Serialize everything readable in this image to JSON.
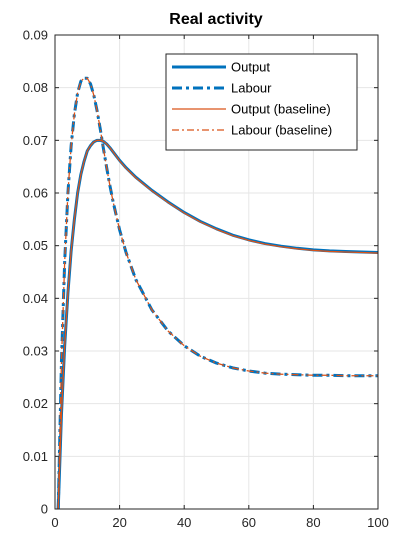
{
  "chart_data": {
    "type": "line",
    "title": "Real activity",
    "xlabel": "",
    "ylabel": "",
    "xlim": [
      0,
      100
    ],
    "ylim": [
      0,
      0.09
    ],
    "xticks": [
      "0",
      "20",
      "40",
      "60",
      "80",
      "100"
    ],
    "yticks": [
      "0",
      "0.01",
      "0.02",
      "0.03",
      "0.04",
      "0.05",
      "0.06",
      "0.07",
      "0.08",
      "0.09"
    ],
    "xtick_values": [
      0,
      20,
      40,
      60,
      80,
      100
    ],
    "ytick_values": [
      0,
      0.01,
      0.02,
      0.03,
      0.04,
      0.05,
      0.06,
      0.07,
      0.08,
      0.09
    ],
    "grid": true,
    "legend_position": "top-right",
    "x": [
      1,
      2,
      3,
      4,
      5,
      6,
      7,
      8,
      9,
      10,
      11,
      12,
      13,
      14,
      15,
      16,
      17,
      18,
      20,
      22,
      25,
      30,
      35,
      40,
      45,
      50,
      55,
      60,
      65,
      70,
      75,
      80,
      85,
      90,
      95,
      100
    ],
    "series": [
      {
        "name": "Output",
        "color": "#0072bd",
        "style": "solid-thick",
        "values": [
          0.0,
          0.018,
          0.031,
          0.041,
          0.049,
          0.055,
          0.06,
          0.0635,
          0.066,
          0.068,
          0.069,
          0.0697,
          0.07,
          0.07,
          0.0698,
          0.0693,
          0.0686,
          0.0678,
          0.0662,
          0.0648,
          0.063,
          0.0605,
          0.0583,
          0.0563,
          0.0546,
          0.0532,
          0.052,
          0.0511,
          0.0504,
          0.0499,
          0.0495,
          0.0492,
          0.049,
          0.0489,
          0.0488,
          0.0487
        ]
      },
      {
        "name": "Labour",
        "color": "#0072bd",
        "style": "dashdot-thick",
        "values": [
          0.0,
          0.028,
          0.047,
          0.06,
          0.069,
          0.075,
          0.079,
          0.0812,
          0.0818,
          0.0818,
          0.0807,
          0.0786,
          0.0757,
          0.0722,
          0.0684,
          0.0648,
          0.0614,
          0.0583,
          0.053,
          0.0487,
          0.0436,
          0.0378,
          0.0338,
          0.031,
          0.029,
          0.0277,
          0.0268,
          0.0262,
          0.0258,
          0.0256,
          0.0255,
          0.0254,
          0.0254,
          0.0253,
          0.0253,
          0.0253
        ]
      },
      {
        "name": "Output (baseline)",
        "color": "#d95319",
        "style": "solid-thin",
        "values": [
          0.0,
          0.018,
          0.031,
          0.041,
          0.049,
          0.055,
          0.06,
          0.0635,
          0.066,
          0.068,
          0.069,
          0.0697,
          0.07,
          0.07,
          0.0698,
          0.0693,
          0.0686,
          0.0678,
          0.0661,
          0.0647,
          0.0629,
          0.0604,
          0.0582,
          0.0562,
          0.0545,
          0.0531,
          0.0519,
          0.051,
          0.0503,
          0.0498,
          0.0494,
          0.0491,
          0.0489,
          0.0488,
          0.0487,
          0.0486
        ]
      },
      {
        "name": "Labour (baseline)",
        "color": "#d95319",
        "style": "dashdot-thin",
        "values": [
          0.0,
          0.028,
          0.047,
          0.06,
          0.069,
          0.075,
          0.079,
          0.0812,
          0.0818,
          0.0818,
          0.0807,
          0.0786,
          0.0757,
          0.0722,
          0.0684,
          0.0648,
          0.0614,
          0.0583,
          0.053,
          0.0487,
          0.0436,
          0.0378,
          0.0338,
          0.031,
          0.029,
          0.0277,
          0.0268,
          0.0262,
          0.0258,
          0.0256,
          0.0255,
          0.0254,
          0.0254,
          0.0253,
          0.0253,
          0.0253
        ]
      }
    ]
  }
}
